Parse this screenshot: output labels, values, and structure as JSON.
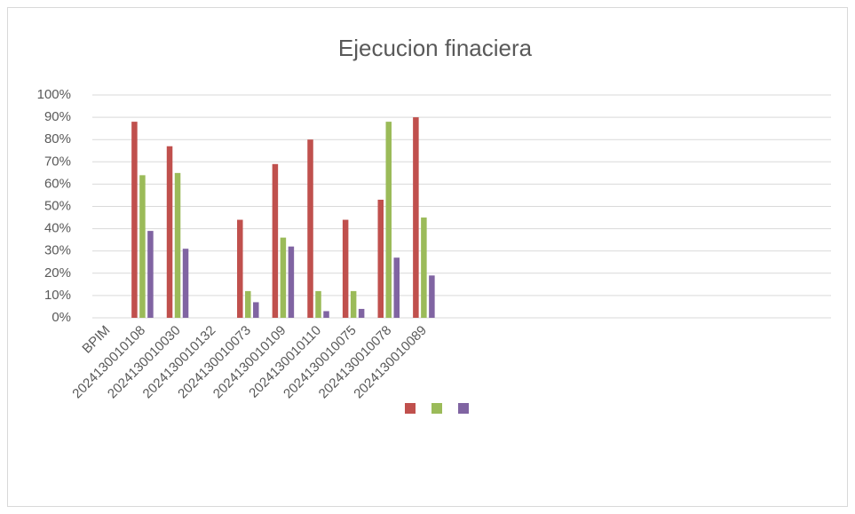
{
  "chart_data": {
    "type": "bar",
    "title": "Ejecucion finaciera",
    "categories": [
      "BPIM",
      "2024130010108",
      "2024130010030",
      "2024130010132",
      "2024130010073",
      "2024130010109",
      "2024130010110",
      "2024130010075",
      "2024130010078",
      "2024130010089",
      null,
      null,
      null,
      null,
      null,
      null,
      null,
      null,
      null,
      null,
      null
    ],
    "series": [
      {
        "color": "#c0504d",
        "values": [
          null,
          88,
          77,
          null,
          44,
          69,
          80,
          44,
          53,
          90,
          null,
          null,
          null,
          null,
          null,
          null,
          null,
          null,
          null,
          null,
          null
        ]
      },
      {
        "color": "#9bbb59",
        "values": [
          null,
          64,
          65,
          null,
          12,
          36,
          12,
          12,
          88,
          45,
          null,
          null,
          null,
          null,
          null,
          null,
          null,
          null,
          null,
          null,
          null
        ]
      },
      {
        "color": "#8064a2",
        "values": [
          null,
          39,
          31,
          null,
          7,
          32,
          3,
          4,
          27,
          19,
          null,
          null,
          null,
          null,
          null,
          null,
          null,
          null,
          null,
          null,
          null
        ]
      }
    ],
    "ylim": [
      0,
      100
    ],
    "yticks": [
      {
        "value": 0,
        "label": "0%"
      },
      {
        "value": 10,
        "label": "10%"
      },
      {
        "value": 20,
        "label": "20%"
      },
      {
        "value": 30,
        "label": "30%"
      },
      {
        "value": 40,
        "label": "40%"
      },
      {
        "value": 50,
        "label": "50%"
      },
      {
        "value": 60,
        "label": "60%"
      },
      {
        "value": 70,
        "label": "70%"
      },
      {
        "value": 80,
        "label": "80%"
      },
      {
        "value": 90,
        "label": "90%"
      },
      {
        "value": 100,
        "label": "100%"
      }
    ],
    "grid": true,
    "legend": "bottom"
  }
}
